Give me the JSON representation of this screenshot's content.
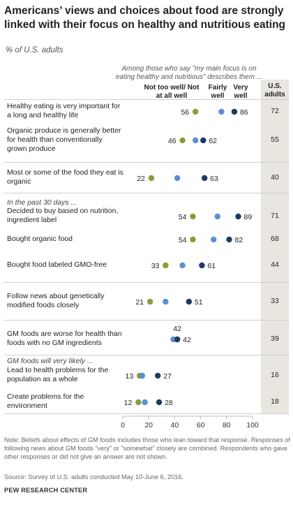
{
  "title": "Americans’ views and choices about food are strongly linked with their focus on healthy and nutritious eating",
  "subtitle": "% of U.S. adults",
  "column_note": "Among those who say \"my main focus is on eating healthy and nutritious\" describes them ...",
  "colors": {
    "not_well": "#8a9c3a",
    "fairly_well": "#5b8fd1",
    "very_well": "#1f3a5f",
    "us_band": "#e8e6df"
  },
  "chart_data": {
    "type": "scatter",
    "title": "Americans’ views and choices about food are strongly linked with their focus on healthy and nutritious eating",
    "subtitle": "% of U.S. adults",
    "xlim": [
      0,
      100
    ],
    "xticks": [
      0,
      20,
      40,
      60,
      80,
      100
    ],
    "series": [
      {
        "name": "Not too well/ Not at all well",
        "key": "not_well"
      },
      {
        "name": "Fairly well",
        "key": "fairly_well"
      },
      {
        "name": "Very well",
        "key": "very_well"
      }
    ],
    "us_column_label": "U.S. adults",
    "sections": [
      {
        "label": "In the past 30 days ...",
        "before_row": 3
      },
      {
        "label": "GM foods will very likely ...",
        "before_row": 8
      }
    ],
    "rows": [
      {
        "label": "Healthy eating is very important for a long and healthy life",
        "not_well": 56,
        "fairly_well": 76,
        "very_well": 86,
        "us_adults": 72,
        "labels_shown": [
          "not_well",
          "very_well"
        ]
      },
      {
        "label": "Organic produce is generally better for health than conventionally grown produce",
        "not_well": 46,
        "fairly_well": 56,
        "very_well": 62,
        "us_adults": 55,
        "labels_shown": [
          "not_well",
          "very_well"
        ]
      },
      {
        "label": "Most or some of the food they eat is organic",
        "not_well": 22,
        "fairly_well": 42,
        "very_well": 63,
        "us_adults": 40,
        "labels_shown": [
          "not_well",
          "very_well"
        ]
      },
      {
        "label": "Decided to buy based on nutrition, ingredient label",
        "not_well": 54,
        "fairly_well": 73,
        "very_well": 89,
        "us_adults": 71,
        "labels_shown": [
          "not_well",
          "very_well"
        ]
      },
      {
        "label": "Bought organic food",
        "not_well": 54,
        "fairly_well": 70,
        "very_well": 82,
        "us_adults": 68,
        "labels_shown": [
          "not_well",
          "very_well"
        ]
      },
      {
        "label": "Bought food labeled GMO-free",
        "not_well": 33,
        "fairly_well": 46,
        "very_well": 61,
        "us_adults": 44,
        "labels_shown": [
          "not_well",
          "very_well"
        ]
      },
      {
        "label": "Follow news about genetically modified foods closely",
        "not_well": 21,
        "fairly_well": 33,
        "very_well": 51,
        "us_adults": 33,
        "labels_shown": [
          "not_well",
          "very_well"
        ]
      },
      {
        "label": "GM foods are worse for health than foods with no GM ingredients",
        "not_well": 42,
        "fairly_well": 39,
        "very_well": 42,
        "us_adults": 39,
        "labels_shown": [
          "not_well",
          "very_well"
        ]
      },
      {
        "label": "Lead to health problems for the population as a whole",
        "not_well": 13,
        "fairly_well": 15,
        "very_well": 27,
        "us_adults": 16,
        "labels_shown": [
          "not_well",
          "very_well"
        ]
      },
      {
        "label": "Create problems for the environment",
        "not_well": 12,
        "fairly_well": 17,
        "very_well": 28,
        "us_adults": 18,
        "labels_shown": [
          "not_well",
          "very_well"
        ]
      }
    ]
  },
  "note": "Note: Beliefs about effects of GM foods includes those who lean toward that response. Responses of following news about GM foods \"very\" or \"somewhat\" closely are combined. Respondents who gave other responses or did not give an answer are not shown.",
  "source": "Source: Survey of U.S. adults conducted May 10-June 6, 2016.",
  "brand": "PEW RESEARCH CENTER"
}
